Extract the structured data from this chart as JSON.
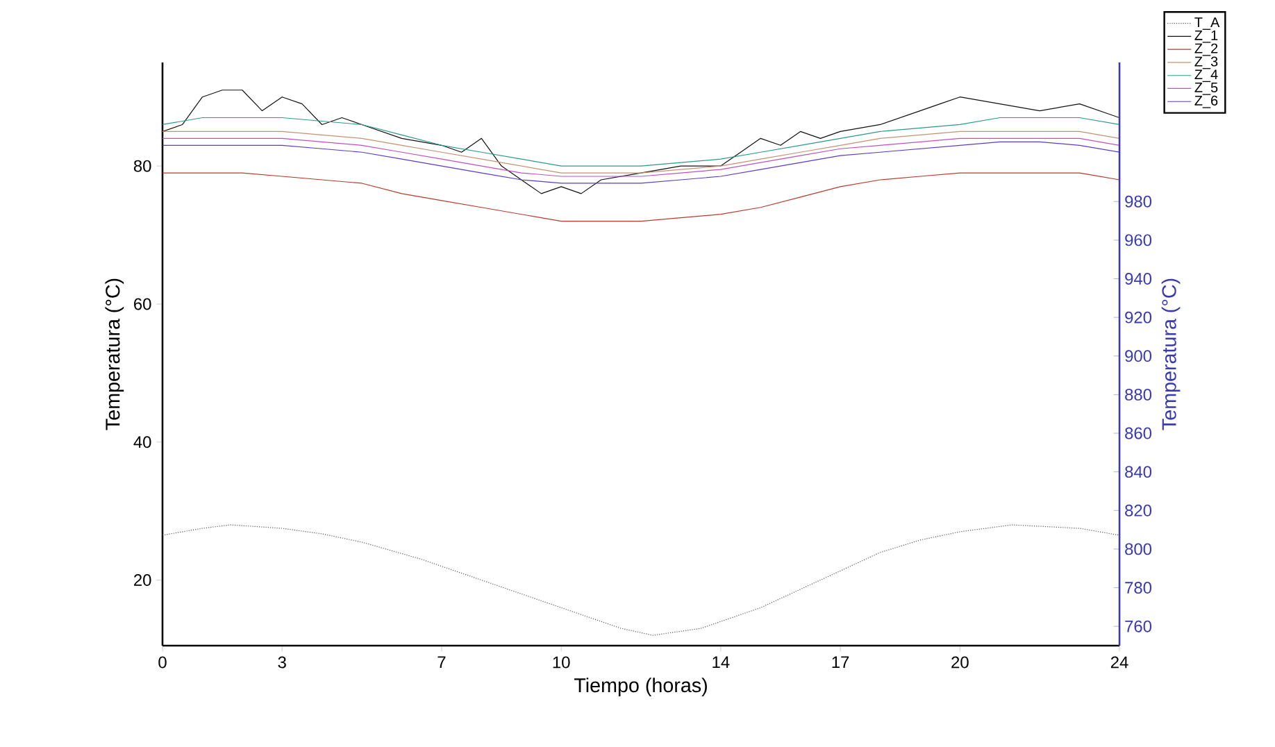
{
  "chart_data": {
    "type": "line",
    "xlabel": "Tiempo (horas)",
    "ylabel": "Temperatura (°C)",
    "y2label": "Temperatura (°C)",
    "xlim": [
      0,
      24
    ],
    "ylim": [
      10.5,
      95
    ],
    "y2lim": [
      750,
      1052
    ],
    "xticks": [
      0,
      3,
      7,
      10,
      14,
      17,
      20,
      24
    ],
    "yticks": [
      20,
      40,
      60,
      80
    ],
    "y2ticks": [
      760,
      780,
      800,
      820,
      840,
      860,
      880,
      900,
      920,
      940,
      960,
      980
    ],
    "legend": "top right",
    "series": [
      {
        "name": "T_A",
        "color": "#555555",
        "line_style": "dotted",
        "x": [
          0,
          1,
          1.7,
          3,
          4,
          5,
          6.5,
          8,
          9,
          10,
          11,
          11.5,
          12.3,
          13.5,
          15,
          16.5,
          18,
          19,
          20,
          21.3,
          23,
          24
        ],
        "values": [
          26.5,
          27.5,
          28,
          27.5,
          26.7,
          25.5,
          23,
          20,
          18,
          16,
          14,
          13,
          12,
          13,
          16,
          20,
          24,
          25.8,
          27,
          28,
          27.5,
          26.5
        ]
      },
      {
        "name": "Z_1",
        "color": "#111111",
        "x": [
          0,
          0.5,
          1,
          1.5,
          2,
          2.5,
          3,
          3.5,
          4,
          4.5,
          5,
          6,
          7,
          7.5,
          8,
          8.5,
          9,
          9.5,
          10,
          10.5,
          11,
          12,
          13,
          14,
          14.5,
          15,
          15.5,
          16,
          16.5,
          17,
          18,
          19,
          19.5,
          20,
          21,
          22,
          23,
          24
        ],
        "values": [
          85,
          86,
          90,
          91,
          91,
          88,
          90,
          89,
          86,
          87,
          86,
          84,
          83,
          82,
          84,
          80,
          78,
          76,
          77,
          76,
          78,
          79,
          80,
          80,
          82,
          84,
          83,
          85,
          84,
          85,
          86,
          88,
          89,
          90,
          89,
          88,
          89,
          87
        ]
      },
      {
        "name": "Z_2",
        "color": "#b83a2a",
        "x": [
          0,
          1,
          2,
          3,
          4,
          5,
          6,
          7,
          8,
          9,
          10,
          11,
          12,
          13,
          14,
          15,
          16,
          17,
          18,
          19,
          20,
          21,
          22,
          23,
          24
        ],
        "values": [
          79,
          79,
          79,
          78.5,
          78,
          77.5,
          76,
          75,
          74,
          73,
          72,
          72,
          72,
          72.5,
          73,
          74,
          75.5,
          77,
          78,
          78.5,
          79,
          79,
          79,
          79,
          78
        ]
      },
      {
        "name": "Z_3",
        "color": "#c89070",
        "x": [
          0,
          1,
          2,
          3,
          4,
          5,
          6,
          7,
          8,
          9,
          10,
          11,
          12,
          13,
          14,
          15,
          16,
          17,
          18,
          19,
          20,
          21,
          22,
          23,
          24
        ],
        "values": [
          85,
          85,
          85,
          85,
          84.5,
          84,
          83,
          82,
          81,
          80,
          79,
          79,
          79,
          79.5,
          80,
          81,
          82,
          83,
          84,
          84.5,
          85,
          85,
          85,
          85,
          84
        ]
      },
      {
        "name": "Z_4",
        "color": "#2a9a8a",
        "x": [
          0,
          1,
          2,
          3,
          4,
          5,
          6,
          7,
          8,
          9,
          10,
          11,
          12,
          13,
          14,
          15,
          16,
          17,
          18,
          19,
          20,
          21,
          22,
          23,
          24
        ],
        "values": [
          86,
          87,
          87,
          87,
          86.5,
          86,
          84.5,
          83,
          82,
          81,
          80,
          80,
          80,
          80.5,
          81,
          82,
          83,
          84,
          85,
          85.5,
          86,
          87,
          87,
          87,
          86
        ]
      },
      {
        "name": "Z_5",
        "color": "#c050c0",
        "x": [
          0,
          1,
          2,
          3,
          4,
          5,
          6,
          7,
          8,
          9,
          10,
          11,
          12,
          13,
          14,
          15,
          16,
          17,
          18,
          19,
          20,
          21,
          22,
          23,
          24
        ],
        "values": [
          84,
          84,
          84,
          84,
          83.5,
          83,
          82,
          81,
          80,
          79,
          78.5,
          78.5,
          78.5,
          79,
          79.5,
          80.5,
          81.5,
          82.5,
          83,
          83.5,
          84,
          84,
          84,
          84,
          83
        ]
      },
      {
        "name": "Z_6",
        "color": "#5a3ad0",
        "x": [
          0,
          1,
          2,
          3,
          4,
          5,
          6,
          7,
          8,
          9,
          10,
          11,
          12,
          13,
          14,
          15,
          16,
          17,
          18,
          19,
          20,
          21,
          22,
          23,
          24
        ],
        "values": [
          83,
          83,
          83,
          83,
          82.5,
          82,
          81,
          80,
          79,
          78,
          77.5,
          77.5,
          77.5,
          78,
          78.5,
          79.5,
          80.5,
          81.5,
          82,
          82.5,
          83,
          83.5,
          83.5,
          83,
          82
        ]
      }
    ]
  }
}
